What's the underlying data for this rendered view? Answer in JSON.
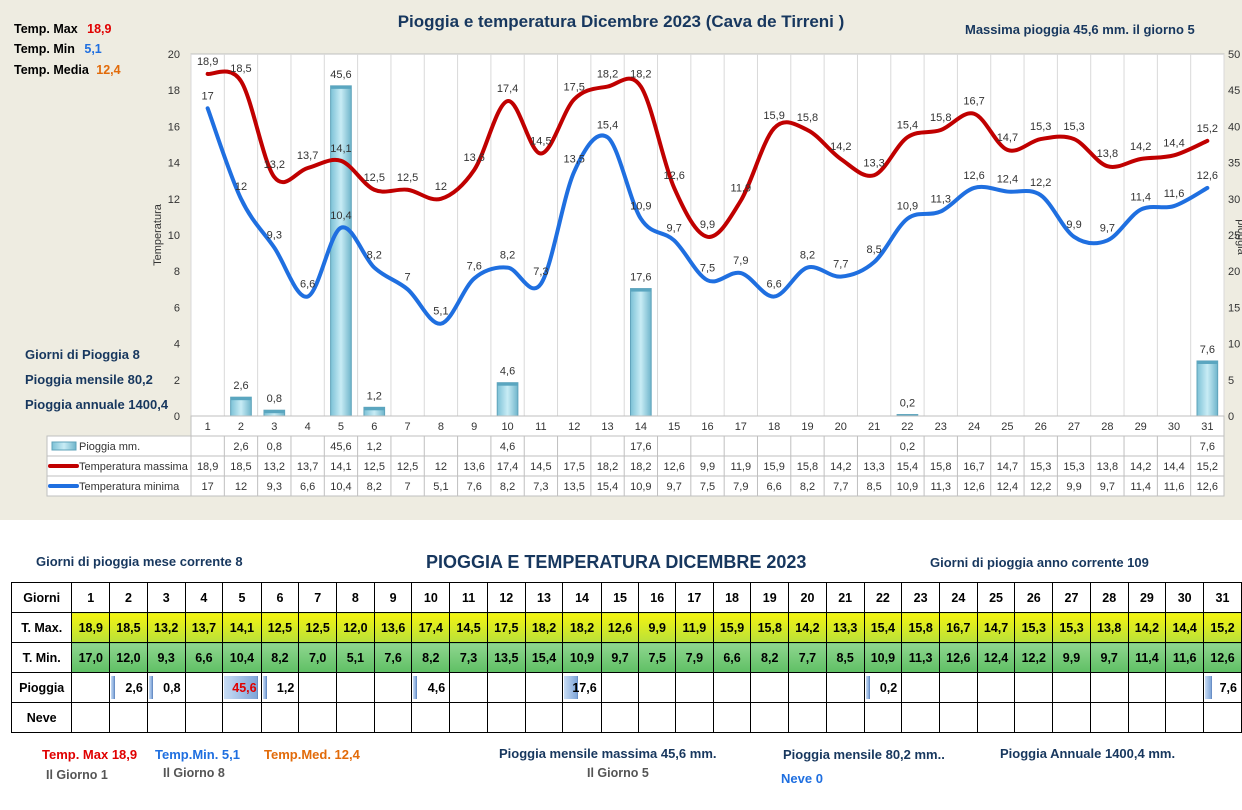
{
  "summary_top": {
    "tmax_label": "Temp. Max",
    "tmax_value": "18,9",
    "tmin_label": "Temp. Min",
    "tmin_value": "5,1",
    "tmed_label": "Temp. Media",
    "tmed_value": "12,4",
    "max_rain_text": "Massima pioggia  45,6 mm. il giorno  5",
    "rain_days_label": "Giorni di Pioggia  8",
    "monthly_rain_label": "Pioggia mensile  80,2",
    "annual_rain_label": "Pioggia annuale  1400,4"
  },
  "chart_data": {
    "type": "bar",
    "title": "Pioggia e temperatura Dicembre 2023 (Cava de Tirreni )",
    "ylabel": "Temperatura",
    "y2label": "pioggia",
    "ylim": [
      0,
      20
    ],
    "y2lim": [
      0,
      50
    ],
    "y_ticks": [
      "0",
      "2",
      "4",
      "6",
      "8",
      "10",
      "12",
      "14",
      "16",
      "18",
      "20"
    ],
    "y2_ticks": [
      "0",
      "5",
      "10",
      "15",
      "20",
      "25",
      "30",
      "35",
      "40",
      "45",
      "50"
    ],
    "categories": [
      "1",
      "2",
      "3",
      "4",
      "5",
      "6",
      "7",
      "8",
      "9",
      "10",
      "11",
      "12",
      "13",
      "14",
      "15",
      "16",
      "17",
      "18",
      "19",
      "20",
      "21",
      "22",
      "23",
      "24",
      "25",
      "26",
      "27",
      "28",
      "29",
      "30",
      "31"
    ],
    "legend_table": true,
    "series": [
      {
        "name": "Pioggia mm.",
        "kind": "bar",
        "axis": "right",
        "color": "#9dd3e3",
        "values": [
          null,
          2.6,
          0.8,
          null,
          45.6,
          1.2,
          null,
          null,
          null,
          4.6,
          null,
          null,
          null,
          17.6,
          null,
          null,
          null,
          null,
          null,
          null,
          null,
          0.2,
          null,
          null,
          null,
          null,
          null,
          null,
          null,
          null,
          7.6
        ],
        "labels": [
          "",
          "2,6",
          "0,8",
          "",
          "45,6",
          "1,2",
          "",
          "",
          "",
          "4,6",
          "",
          "",
          "",
          "17,6",
          "",
          "",
          "",
          "",
          "",
          "",
          "",
          "0,2",
          "",
          "",
          "",
          "",
          "",
          "",
          "",
          "",
          "7,6"
        ]
      },
      {
        "name": "Temperatura massima",
        "kind": "line",
        "axis": "left",
        "color": "#c00000",
        "values": [
          18.9,
          18.5,
          13.2,
          13.7,
          14.1,
          12.5,
          12.5,
          12,
          13.6,
          17.4,
          14.5,
          17.5,
          18.2,
          18.2,
          12.6,
          9.9,
          11.9,
          15.9,
          15.8,
          14.2,
          13.3,
          15.4,
          15.8,
          16.7,
          14.7,
          15.3,
          15.3,
          13.8,
          14.2,
          14.4,
          15.2
        ],
        "labels": [
          "18,9",
          "18,5",
          "13,2",
          "13,7",
          "14,1",
          "12,5",
          "12,5",
          "12",
          "13,6",
          "17,4",
          "14,5",
          "17,5",
          "18,2",
          "18,2",
          "12,6",
          "9,9",
          "11,9",
          "15,9",
          "15,8",
          "14,2",
          "13,3",
          "15,4",
          "15,8",
          "16,7",
          "14,7",
          "15,3",
          "15,3",
          "13,8",
          "14,2",
          "14,4",
          "15,2"
        ]
      },
      {
        "name": "Temperatura minima",
        "kind": "line",
        "axis": "left",
        "color": "#1f6fe0",
        "values": [
          17,
          12,
          9.3,
          6.6,
          10.4,
          8.2,
          7,
          5.1,
          7.6,
          8.2,
          7.3,
          13.5,
          15.4,
          10.9,
          9.7,
          7.5,
          7.9,
          6.6,
          8.2,
          7.7,
          8.5,
          10.9,
          11.3,
          12.6,
          12.4,
          12.2,
          9.9,
          9.7,
          11.4,
          11.6,
          12.6
        ],
        "labels": [
          "17",
          "12",
          "9,3",
          "6,6",
          "10,4",
          "8,2",
          "7",
          "5,1",
          "7,6",
          "8,2",
          "7,3",
          "13,5",
          "15,4",
          "10,9",
          "9,7",
          "7,5",
          "7,9",
          "6,6",
          "8,2",
          "7,7",
          "8,5",
          "10,9",
          "11,3",
          "12,6",
          "12,4",
          "12,2",
          "9,9",
          "9,7",
          "11,4",
          "11,6",
          "12,6"
        ]
      }
    ]
  },
  "bottom": {
    "title": "PIOGGIA E TEMPERATURA DICEMBRE 2023",
    "rain_days_month": "Giorni di pioggia mese corrente    8",
    "rain_days_year": "Giorni di pioggia anno corrente  109",
    "table": {
      "row_labels": [
        "Giorni",
        "T. Max.",
        "T. Min.",
        "Pioggia",
        "Neve"
      ],
      "days": [
        "1",
        "2",
        "3",
        "4",
        "5",
        "6",
        "7",
        "8",
        "9",
        "10",
        "11",
        "12",
        "13",
        "14",
        "15",
        "16",
        "17",
        "18",
        "19",
        "20",
        "21",
        "22",
        "23",
        "24",
        "25",
        "26",
        "27",
        "28",
        "29",
        "30",
        "31"
      ],
      "tmax": [
        "18,9",
        "18,5",
        "13,2",
        "13,7",
        "14,1",
        "12,5",
        "12,5",
        "12,0",
        "13,6",
        "17,4",
        "14,5",
        "17,5",
        "18,2",
        "18,2",
        "12,6",
        "9,9",
        "11,9",
        "15,9",
        "15,8",
        "14,2",
        "13,3",
        "15,4",
        "15,8",
        "16,7",
        "14,7",
        "15,3",
        "15,3",
        "13,8",
        "14,2",
        "14,4",
        "15,2"
      ],
      "tmin": [
        "17,0",
        "12,0",
        "9,3",
        "6,6",
        "10,4",
        "8,2",
        "7,0",
        "5,1",
        "7,6",
        "8,2",
        "7,3",
        "13,5",
        "15,4",
        "10,9",
        "9,7",
        "7,5",
        "7,9",
        "6,6",
        "8,2",
        "7,7",
        "8,5",
        "10,9",
        "11,3",
        "12,6",
        "12,4",
        "12,2",
        "9,9",
        "9,7",
        "11,4",
        "11,6",
        "12,6"
      ],
      "rain": [
        "",
        "2,6",
        "0,8",
        "",
        "45,6",
        "1,2",
        "",
        "",
        "",
        "4,6",
        "",
        "",
        "",
        "17,6",
        "",
        "",
        "",
        "",
        "",
        "",
        "",
        "0,2",
        "",
        "",
        "",
        "",
        "",
        "",
        "",
        "",
        "7,6"
      ],
      "rain_values": [
        0,
        2.6,
        0.8,
        0,
        45.6,
        1.2,
        0,
        0,
        0,
        4.6,
        0,
        0,
        0,
        17.6,
        0,
        0,
        0,
        0,
        0,
        0,
        0,
        0.2,
        0,
        0,
        0,
        0,
        0,
        0,
        0,
        0,
        7.6
      ]
    },
    "footer": {
      "tmax": "Temp. Max 18,9",
      "tmax_day": "Il Giorno   1",
      "tmin": "Temp.Min.  5,1",
      "tmin_day": "Il Giorno 8",
      "tmed": "Temp.Med. 12,4",
      "max_monthly_rain": "Pioggia mensile massima 45,6   mm.",
      "max_monthly_rain_day": "Il Giorno  5",
      "monthly_rain": "Pioggia mensile  80,2    mm..",
      "snow": "Neve 0",
      "annual_rain": "Pioggia Annuale  1400,4 mm."
    }
  },
  "colors": {
    "tmax": "#c00000",
    "tmin": "#1f6fe0",
    "tmed": "#e26b0a",
    "navy": "#17375e",
    "rain_bar": "#9dd3e3"
  }
}
